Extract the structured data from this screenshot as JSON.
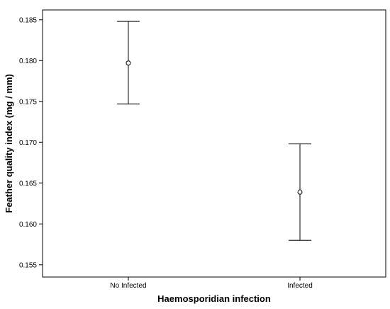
{
  "chart_data": {
    "type": "scatter",
    "title": "",
    "xlabel": "Haemosporidian infection",
    "ylabel": "Feather quality index (mg / mm)",
    "categories": [
      "No Infected",
      "Infected"
    ],
    "means": [
      0.1797,
      0.1639
    ],
    "ci_lower": [
      0.1747,
      0.158
    ],
    "ci_upper": [
      0.1848,
      0.1698
    ],
    "ylim": [
      0.1535,
      0.1862
    ],
    "yticks": [
      "0.155",
      "0.160",
      "0.165",
      "0.170",
      "0.175",
      "0.180",
      "0.185"
    ],
    "grid": false,
    "legend": "none",
    "marker": "open-circle",
    "colors": {
      "line": "#000000",
      "background": "#ffffff"
    }
  }
}
